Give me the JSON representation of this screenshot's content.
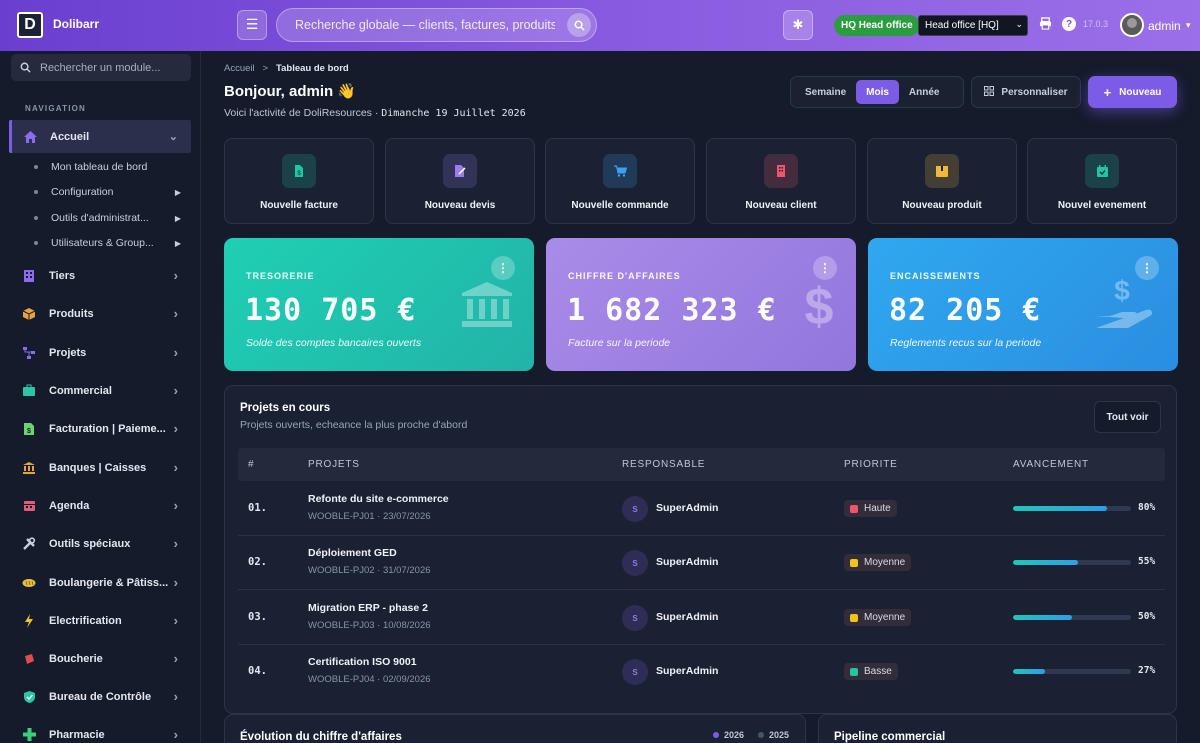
{
  "app": {
    "logo_letter": "D",
    "name": "Dolibarr",
    "version": "17.0.3"
  },
  "topbar": {
    "search_placeholder": "Recherche globale — clients, factures, produits...",
    "entity_badge": "HQ Head office",
    "entity_select": "Head office [HQ]",
    "user_name": "admin"
  },
  "sidebar": {
    "search_placeholder": "Rechercher un module...",
    "nav_label": "NAVIGATION",
    "items": [
      {
        "label": "Accueil",
        "icon": "home-icon",
        "color": "#8b6cf0"
      },
      {
        "label": "Tiers",
        "icon": "building-icon",
        "color": "#8b6cf0"
      },
      {
        "label": "Produits",
        "icon": "cube-icon",
        "color": "#e8a33d"
      },
      {
        "label": "Projets",
        "icon": "project-icon",
        "color": "#8b6cf0"
      },
      {
        "label": "Commercial",
        "icon": "briefcase-icon",
        "color": "#2ec4a9"
      },
      {
        "label": "Facturation | Paieme...",
        "icon": "invoice-icon",
        "color": "#6dd36d"
      },
      {
        "label": "Banques | Caisses",
        "icon": "bank-icon",
        "color": "#e8a33d"
      },
      {
        "label": "Agenda",
        "icon": "calendar-icon",
        "color": "#e05c7b"
      },
      {
        "label": "Outils spéciaux",
        "icon": "tools-icon",
        "color": "#c8cede"
      },
      {
        "label": "Boulangerie & Pâtiss...",
        "icon": "bread-icon",
        "color": "#e8c23d"
      },
      {
        "label": "Electrification",
        "icon": "bolt-icon",
        "color": "#f0c419"
      },
      {
        "label": "Boucherie",
        "icon": "meat-icon",
        "color": "#e04b4b"
      },
      {
        "label": "Bureau de Contrôle",
        "icon": "shield-icon",
        "color": "#2ec4a9"
      },
      {
        "label": "Pharmacie",
        "icon": "cross-icon",
        "color": "#3ad07a"
      }
    ],
    "sub_items": [
      {
        "label": "Mon tableau de bord"
      },
      {
        "label": "Configuration"
      },
      {
        "label": "Outils d'administrat..."
      },
      {
        "label": "Utilisateurs & Group..."
      }
    ]
  },
  "main": {
    "breadcrumb": {
      "home": "Accueil",
      "sep": ">",
      "current": "Tableau de bord"
    },
    "greeting": "Bonjour, admin 👋",
    "subtitle": "Voici l'activité de DoliResources · ",
    "date": "Dimanche 19 Juillet 2026",
    "periods": [
      "Semaine",
      "Mois",
      "Année"
    ],
    "period_selected": "Mois",
    "customize_label": "Personnaliser",
    "new_label": "Nouveau"
  },
  "quick_actions": [
    {
      "label": "Nouvelle facture",
      "icon": "file-icon",
      "color": "#1fc6a0"
    },
    {
      "label": "Nouveau devis",
      "icon": "quote-icon",
      "color": "#9b7cf0"
    },
    {
      "label": "Nouvelle commande",
      "icon": "cart-icon",
      "color": "#3aa0f0"
    },
    {
      "label": "Nouveau client",
      "icon": "client-icon",
      "color": "#f0566b"
    },
    {
      "label": "Nouveau produit",
      "icon": "box-icon",
      "color": "#f0b73a"
    },
    {
      "label": "Nouvel evenement",
      "icon": "event-icon",
      "color": "#1fc6a0"
    }
  ],
  "kpis": [
    {
      "title": "TRESORERIE",
      "value": "130 705 €",
      "subtitle": "Solde des comptes bancaires ouverts",
      "icon": "bank-icon",
      "gradient": [
        "#1ed0b3",
        "#22b3a8"
      ]
    },
    {
      "title": "CHIFFRE D'AFFAIRES",
      "value": "1 682 323 €",
      "subtitle": "Facture sur la periode",
      "icon": "dollar-icon",
      "gradient": [
        "#a98be8",
        "#9276dd"
      ]
    },
    {
      "title": "ENCAISSEMENTS",
      "value": "82 205 €",
      "subtitle": "Reglements recus sur la periode",
      "icon": "hand-dollar-icon",
      "gradient": [
        "#2fa8f0",
        "#2a8ee0"
      ]
    }
  ],
  "projects": {
    "title": "Projets en cours",
    "subtitle": "Projets ouverts, echeance la plus proche d'abord",
    "view_all": "Tout voir",
    "columns": [
      "#",
      "PROJETS",
      "RESPONSABLE",
      "PRIORITE",
      "AVANCEMENT"
    ],
    "rows": [
      {
        "num": "01.",
        "name": "Refonte du site e-commerce",
        "ref": "WOOBLE-PJ01 · 23/07/2026",
        "avatar": "S",
        "owner": "SuperAdmin",
        "priority": "Haute",
        "priority_color": "#f0566b",
        "progress": 80,
        "progress_label": "80%"
      },
      {
        "num": "02.",
        "name": "Déploiement GED",
        "ref": "WOOBLE-PJ02 · 31/07/2026",
        "avatar": "S",
        "owner": "SuperAdmin",
        "priority": "Moyenne",
        "priority_color": "#f0c419",
        "progress": 55,
        "progress_label": "55%"
      },
      {
        "num": "03.",
        "name": "Migration ERP - phase 2",
        "ref": "WOOBLE-PJ03 · 10/08/2026",
        "avatar": "S",
        "owner": "SuperAdmin",
        "priority": "Moyenne",
        "priority_color": "#f0c419",
        "progress": 50,
        "progress_label": "50%"
      },
      {
        "num": "04.",
        "name": "Certification ISO 9001",
        "ref": "WOOBLE-PJ04 · 02/09/2026",
        "avatar": "S",
        "owner": "SuperAdmin",
        "priority": "Basse",
        "priority_color": "#1fc6a0",
        "progress": 27,
        "progress_label": "27%"
      }
    ]
  },
  "revenue_panel": {
    "title": "Évolution du chiffre d'affaires",
    "legend": [
      {
        "label": "2026",
        "color": "#7c5ce6"
      },
      {
        "label": "2025",
        "color": "#4a5366"
      }
    ]
  },
  "pipeline_panel": {
    "title": "Pipeline commercial"
  }
}
